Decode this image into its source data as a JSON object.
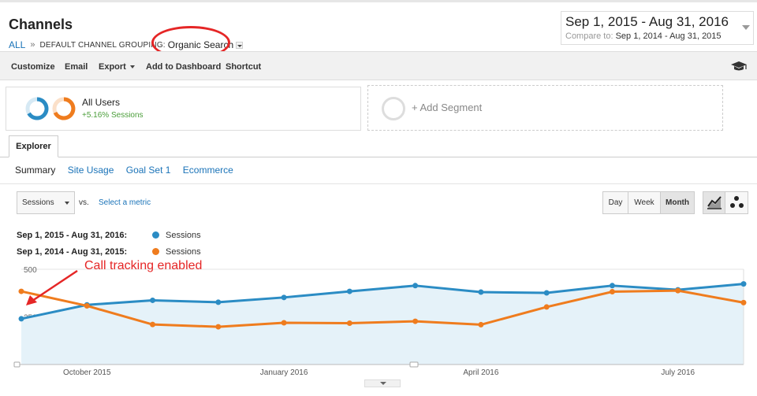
{
  "header": {
    "title": "Channels",
    "breadcrumb": {
      "root": "ALL",
      "separator": "»",
      "group": "DEFAULT CHANNEL GROUPING:",
      "selected": "Organic Search"
    }
  },
  "date_range": {
    "primary": "Sep 1, 2015 - Aug 31, 2016",
    "compare_label": "Compare to:",
    "compare_range": "Sep 1, 2014 - Aug 31, 2015"
  },
  "toolbar": {
    "customize": "Customize",
    "email": "Email",
    "export": "Export",
    "add_to_dashboard": "Add to Dashboard",
    "shortcut": "Shortcut"
  },
  "segment": {
    "name": "All Users",
    "sub": "+5.16% Sessions",
    "add_label": "+ Add Segment"
  },
  "tabs": {
    "explorer": "Explorer",
    "sub": [
      "Summary",
      "Site Usage",
      "Goal Set 1",
      "Ecommerce"
    ]
  },
  "controls": {
    "metric": "Sessions",
    "vs": "vs.",
    "select_metric": "Select a metric",
    "ranges": [
      "Day",
      "Week",
      "Month"
    ],
    "active_range": "Month"
  },
  "legend": [
    {
      "date": "Sep 1, 2015 - Aug 31, 2016:",
      "name": "Sessions",
      "color": "#2b8cc4"
    },
    {
      "date": "Sep 1, 2014 - Aug 31, 2015:",
      "name": "Sessions",
      "color": "#ef7c1e"
    }
  ],
  "annotation": "Call tracking enabled",
  "colors": {
    "current": "#2b8cc4",
    "previous": "#ef7c1e",
    "area": "#e5f2f9",
    "annotation": "#e52626",
    "link": "#1a73b8"
  },
  "chart_data": {
    "type": "line",
    "x": [
      "2015-09",
      "2015-10",
      "2015-11",
      "2015-12",
      "2016-01",
      "2016-02",
      "2016-03",
      "2016-04",
      "2016-05",
      "2016-06",
      "2016-07",
      "2016-08"
    ],
    "series": [
      {
        "name": "Sessions",
        "values": [
          240,
          313,
          337,
          327,
          352,
          384,
          414,
          380,
          376,
          414,
          392,
          423
        ]
      },
      {
        "name": "Sessions",
        "values": [
          384,
          308,
          210,
          198,
          219,
          217,
          227,
          209,
          302,
          382,
          388,
          325
        ]
      }
    ],
    "x_tick_labels": [
      "October 2015",
      "January 2016",
      "April 2016",
      "July 2016"
    ],
    "x_tick_index": [
      1,
      4,
      7,
      10
    ],
    "y_ticks": [
      250,
      500
    ],
    "ylim": [
      0,
      500
    ],
    "grid": true
  }
}
